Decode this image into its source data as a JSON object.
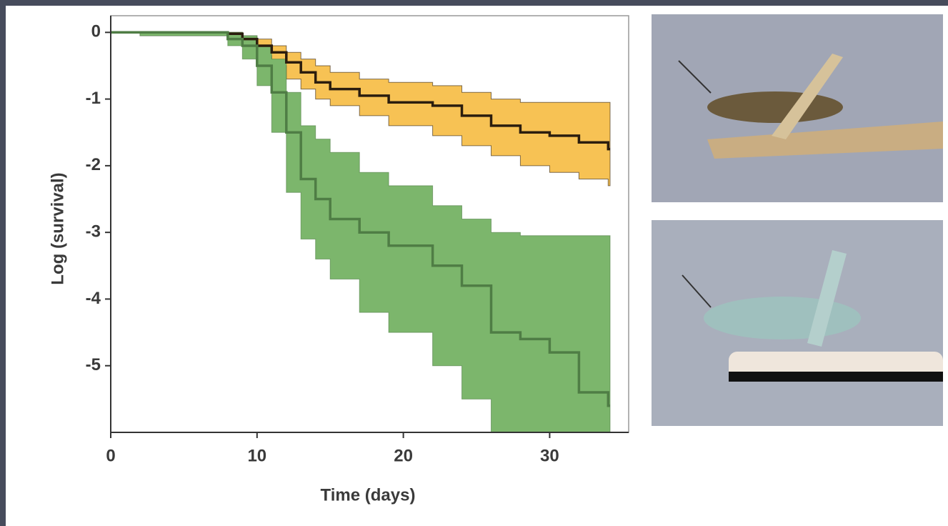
{
  "chart_data": {
    "type": "line",
    "x_label": "Time (days)",
    "y_label": "Log (survival)",
    "x": [
      0,
      2,
      8,
      9,
      10,
      11,
      12,
      13,
      14,
      15,
      17,
      19,
      22,
      24,
      26,
      28,
      30,
      32,
      34
    ],
    "xlim": [
      0,
      35.4
    ],
    "xticks": [
      0,
      10,
      20,
      30
    ],
    "ylim": [
      -6,
      0.25
    ],
    "yticks": [
      0,
      -1,
      -2,
      -3,
      -4,
      -5
    ],
    "step": true,
    "series": [
      {
        "color": "#2b1d0e",
        "band_color": "#f7c254",
        "values": [
          0,
          0,
          -0.02,
          -0.1,
          -0.2,
          -0.3,
          -0.45,
          -0.6,
          -0.75,
          -0.85,
          -0.95,
          -1.05,
          -1.1,
          -1.25,
          -1.4,
          -1.5,
          -1.55,
          -1.65,
          -1.75
        ],
        "upper": [
          0,
          0,
          0,
          -0.05,
          -0.1,
          -0.2,
          -0.3,
          -0.4,
          -0.5,
          -0.6,
          -0.7,
          -0.75,
          -0.8,
          -0.9,
          -1.0,
          -1.05,
          -1.05,
          -1.05,
          -1.05
        ],
        "lower": [
          0,
          -0.05,
          -0.1,
          -0.2,
          -0.35,
          -0.5,
          -0.7,
          -0.85,
          -1.0,
          -1.1,
          -1.25,
          -1.4,
          -1.55,
          -1.7,
          -1.85,
          -2.0,
          -2.1,
          -2.2,
          -2.3
        ]
      },
      {
        "color": "#4f7d45",
        "band_color": "#7cb66c",
        "values": [
          0,
          0,
          -0.1,
          -0.2,
          -0.5,
          -0.9,
          -1.5,
          -2.2,
          -2.5,
          -2.8,
          -3.0,
          -3.2,
          -3.5,
          -3.8,
          -4.5,
          -4.6,
          -4.8,
          -5.4,
          -5.6
        ],
        "upper": [
          0,
          0,
          0,
          -0.05,
          -0.2,
          -0.4,
          -0.9,
          -1.4,
          -1.6,
          -1.8,
          -2.1,
          -2.3,
          -2.6,
          -2.8,
          -3.0,
          -3.05,
          -3.05,
          -3.05,
          -3.05
        ],
        "lower": [
          0,
          -0.05,
          -0.2,
          -0.4,
          -0.8,
          -1.5,
          -2.4,
          -3.1,
          -3.4,
          -3.7,
          -4.2,
          -4.5,
          -5.0,
          -5.5,
          -6.0,
          -6.0,
          -6.0,
          -6.0,
          -6.0
        ]
      }
    ]
  }
}
